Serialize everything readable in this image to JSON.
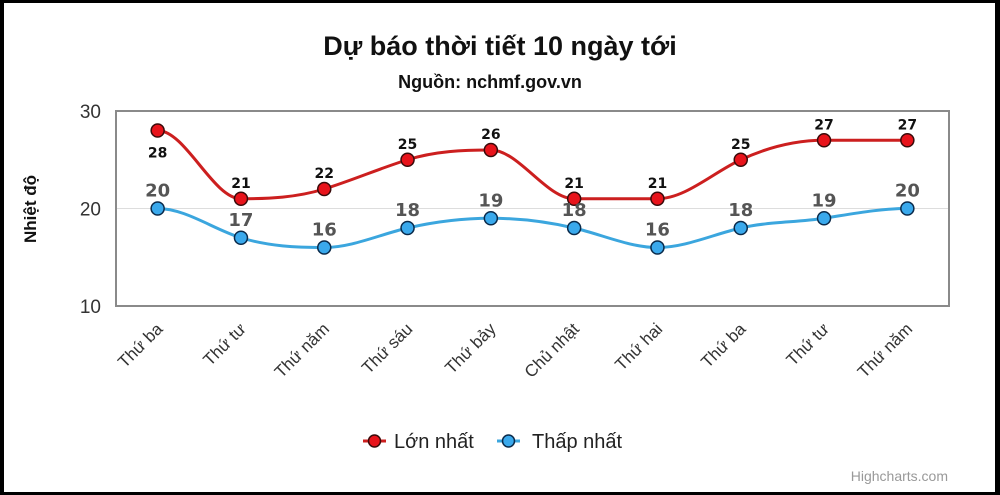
{
  "chart_data": {
    "type": "line",
    "title": "Dự báo thời tiết 10 ngày tới",
    "subtitle": "Nguồn: nchmf.gov.vn",
    "xlabel": "",
    "ylabel": "Nhiệt độ",
    "ylim": [
      10,
      30
    ],
    "yticks": [
      10,
      20,
      30
    ],
    "grid": true,
    "smooth": true,
    "legend_position": "bottom-center",
    "categories": [
      "Thứ ba",
      "Thứ tư",
      "Thứ năm",
      "Thứ sáu",
      "Thứ bảy",
      "Chủ nhật",
      "Thứ hai",
      "Thứ ba",
      "Thứ tư",
      "Thứ năm"
    ],
    "series": [
      {
        "name": "Lớn nhất",
        "color": "#cc1f1f",
        "marker_color": "#e8131b",
        "values": [
          28,
          21,
          22,
          25,
          26,
          21,
          21,
          25,
          27,
          27
        ]
      },
      {
        "name": "Thấp nhất",
        "color": "#3ba6de",
        "marker_color": "#3aa9ec",
        "values": [
          20,
          17,
          16,
          18,
          19,
          18,
          16,
          18,
          19,
          20
        ]
      }
    ],
    "credits": "Highcharts.com"
  }
}
